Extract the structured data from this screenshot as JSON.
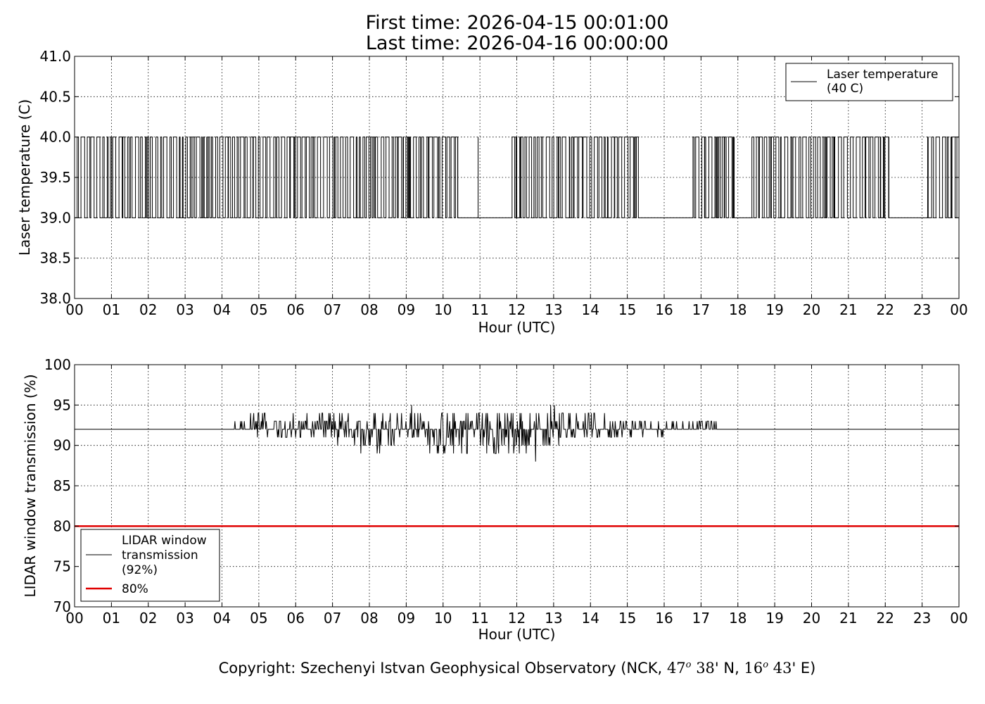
{
  "header": {
    "title_line1": "First time: 2026-04-15 00:01:00",
    "title_line2": "Last time: 2026-04-16 00:00:00"
  },
  "footer": {
    "copyright_text": "Copyright: Szechenyi Istvan Geophysical Observatory (NCK,",
    "lat_deg": "47",
    "lat_min": "38",
    "lat_hem": "' N,",
    "lon_deg": "16",
    "lon_min": "43",
    "lon_hem": "' E)",
    "degree_symbol": "o"
  },
  "chart_data": [
    {
      "type": "line",
      "xlabel": "Hour (UTC)",
      "ylabel": "Laser temperature (C)",
      "xlim": [
        0,
        24
      ],
      "ylim": [
        38.0,
        41.0
      ],
      "x_ticks": [
        "00",
        "01",
        "02",
        "03",
        "04",
        "05",
        "06",
        "07",
        "08",
        "09",
        "10",
        "11",
        "12",
        "13",
        "14",
        "15",
        "16",
        "17",
        "18",
        "19",
        "20",
        "21",
        "22",
        "23",
        "00"
      ],
      "y_ticks": [
        "38.0",
        "38.5",
        "39.0",
        "39.5",
        "40.0",
        "40.5",
        "41.0"
      ],
      "grid": true,
      "legend_position": "top-right",
      "series": [
        {
          "name": "Laser temperature\n(40 C)",
          "color": "#000000",
          "description": "Step signal toggling between 39.0 and 40.0",
          "levels": [
            39.0,
            40.0
          ],
          "toggle_segments": [
            {
              "x_start": 0.0,
              "x_end": 10.4,
              "state": "toggle"
            },
            {
              "x_start": 10.4,
              "x_end": 10.9,
              "state": 39.0
            },
            {
              "x_start": 10.9,
              "x_end": 10.95,
              "state": "toggle"
            },
            {
              "x_start": 10.95,
              "x_end": 11.8,
              "state": 39.0
            },
            {
              "x_start": 11.8,
              "x_end": 13.8,
              "state": "toggle"
            },
            {
              "x_start": 13.8,
              "x_end": 14.4,
              "state": "toggle"
            },
            {
              "x_start": 14.4,
              "x_end": 15.3,
              "state": "toggle"
            },
            {
              "x_start": 15.3,
              "x_end": 16.7,
              "state": 39.0
            },
            {
              "x_start": 16.7,
              "x_end": 17.1,
              "state": "toggle"
            },
            {
              "x_start": 17.1,
              "x_end": 17.9,
              "state": "toggle"
            },
            {
              "x_start": 17.9,
              "x_end": 18.3,
              "state": 39.0
            },
            {
              "x_start": 18.3,
              "x_end": 22.1,
              "state": "toggle"
            },
            {
              "x_start": 22.1,
              "x_end": 23.1,
              "state": 39.0
            },
            {
              "x_start": 23.1,
              "x_end": 24.0,
              "state": "toggle"
            }
          ]
        }
      ]
    },
    {
      "type": "line",
      "xlabel": "Hour (UTC)",
      "ylabel": "LIDAR window transmission (%)",
      "xlim": [
        0,
        24
      ],
      "ylim": [
        70,
        100
      ],
      "x_ticks": [
        "00",
        "01",
        "02",
        "03",
        "04",
        "05",
        "06",
        "07",
        "08",
        "09",
        "10",
        "11",
        "12",
        "13",
        "14",
        "15",
        "16",
        "17",
        "18",
        "19",
        "20",
        "21",
        "22",
        "23",
        "00"
      ],
      "y_ticks": [
        "70",
        "75",
        "80",
        "85",
        "90",
        "95",
        "100"
      ],
      "grid": true,
      "legend_position": "bottom-left",
      "series": [
        {
          "name": "LIDAR window\ntransmission\n(92%)",
          "color": "#000000",
          "baseline": 92,
          "noisy_range_x": [
            4.3,
            17.5
          ],
          "envelope": [
            {
              "x": 4.3,
              "min": 92,
              "max": 93
            },
            {
              "x": 5.0,
              "min": 91,
              "max": 94
            },
            {
              "x": 6.0,
              "min": 91,
              "max": 94
            },
            {
              "x": 7.0,
              "min": 90,
              "max": 94
            },
            {
              "x": 7.9,
              "min": 89,
              "max": 94
            },
            {
              "x": 9.2,
              "min": 90,
              "max": 95
            },
            {
              "x": 9.7,
              "min": 89,
              "max": 94
            },
            {
              "x": 10.8,
              "min": 89,
              "max": 95
            },
            {
              "x": 12.5,
              "min": 88,
              "max": 94
            },
            {
              "x": 12.9,
              "min": 90,
              "max": 95
            },
            {
              "x": 14.0,
              "min": 91,
              "max": 94
            },
            {
              "x": 15.0,
              "min": 91,
              "max": 93
            },
            {
              "x": 16.0,
              "min": 91,
              "max": 93
            },
            {
              "x": 17.0,
              "min": 92,
              "max": 93
            },
            {
              "x": 17.5,
              "min": 92,
              "max": 93
            }
          ]
        },
        {
          "name": "80%",
          "color": "#e00000",
          "values": [
            80,
            80
          ],
          "x": [
            0,
            24
          ]
        }
      ]
    }
  ]
}
